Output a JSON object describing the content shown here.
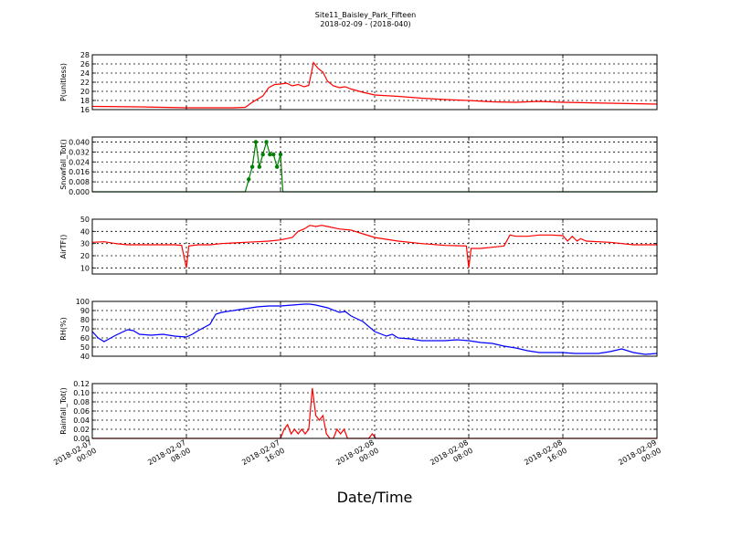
{
  "title": "Site11_Baisley_Park_Fifteen",
  "subtitle": "2018-02-09 - (2018-040)",
  "xlabel": "Date/Time",
  "x_ticks": [
    [
      "2018-02-07",
      "00:00"
    ],
    [
      "2018-02-07",
      "08:00"
    ],
    [
      "2018-02-07",
      "16:00"
    ],
    [
      "2018-02-08",
      "00:00"
    ],
    [
      "2018-02-08",
      "08:00"
    ],
    [
      "2018-02-08",
      "16:00"
    ],
    [
      "2018-02-09",
      "00:00"
    ]
  ],
  "chart_data": [
    {
      "type": "line",
      "ylabel": "P(unitless)",
      "ylim": [
        16,
        28
      ],
      "yticks": [
        "16",
        "18",
        "20",
        "22",
        "24",
        "26",
        "28"
      ],
      "grid": true,
      "color": "#ff0000",
      "x_hours": [
        0,
        4,
        8,
        12,
        13,
        13.6,
        14.5,
        15,
        15.5,
        16,
        16.5,
        17,
        17.5,
        18,
        18.4,
        18.8,
        19.2,
        19.6,
        20,
        20.5,
        21,
        21.5,
        22,
        23,
        24,
        26,
        28,
        30,
        32,
        34,
        36,
        38,
        40,
        42,
        44,
        46,
        48
      ],
      "values": [
        16.7,
        16.6,
        16.4,
        16.4,
        16.5,
        17.6,
        19.0,
        20.8,
        21.5,
        21.6,
        21.8,
        21.2,
        21.5,
        21.0,
        21.3,
        26.3,
        25.0,
        24.2,
        22.2,
        21.2,
        20.8,
        21.0,
        20.5,
        19.8,
        19.2,
        18.9,
        18.5,
        18.2,
        18.0,
        17.7,
        17.6,
        17.8,
        17.6,
        17.5,
        17.4,
        17.3,
        17.2
      ]
    },
    {
      "type": "line",
      "ylabel": "Snowfall_Tot()",
      "ylim": [
        0,
        0.044
      ],
      "yticks": [
        "0.000",
        "0.008",
        "0.016",
        "0.024",
        "0.032",
        "0.040"
      ],
      "grid": true,
      "color": "#008000",
      "markers": true,
      "x_hours": [
        0,
        13.0,
        13.3,
        13.6,
        13.9,
        14.2,
        14.5,
        14.8,
        15.1,
        15.4,
        15.7,
        16.0,
        16.2,
        48
      ],
      "values": [
        0,
        0,
        0.01,
        0.02,
        0.04,
        0.02,
        0.03,
        0.04,
        0.03,
        0.03,
        0.02,
        0.03,
        0,
        0
      ]
    },
    {
      "type": "line",
      "ylabel": "AirTF()",
      "ylim": [
        5,
        50
      ],
      "yticks": [
        "10",
        "20",
        "30",
        "40",
        "50"
      ],
      "grid": true,
      "color": "#ff0000",
      "x_hours": [
        0,
        1,
        2,
        3,
        5,
        7,
        7.6,
        7.8,
        8.0,
        8.2,
        9,
        10,
        11,
        12,
        13,
        14,
        15,
        16,
        17,
        17.5,
        18,
        18.5,
        19,
        19.5,
        20,
        21,
        22,
        23,
        24,
        26,
        28,
        30,
        31.8,
        32,
        32.2,
        33,
        34,
        35,
        35.5,
        36,
        37,
        38,
        39,
        40,
        40.4,
        40.8,
        41.2,
        41.5,
        42,
        44,
        46,
        48
      ],
      "values": [
        31,
        31.5,
        30,
        29,
        29,
        29,
        28.5,
        19,
        10,
        28,
        29,
        29,
        30,
        30.5,
        31,
        31.5,
        32,
        33,
        35,
        40,
        42,
        45,
        44,
        45,
        44,
        42,
        41,
        38,
        35,
        32,
        30,
        28.5,
        28,
        10,
        26,
        26,
        27,
        28,
        37,
        36,
        36,
        37,
        37,
        36.5,
        32,
        36,
        32,
        34,
        32,
        31,
        29,
        29
      ]
    },
    {
      "type": "line",
      "ylabel": "RH(%)",
      "ylim": [
        40,
        100
      ],
      "yticks": [
        "40",
        "50",
        "60",
        "70",
        "80",
        "90",
        "100"
      ],
      "grid": true,
      "color": "#0000ff",
      "x_hours": [
        0,
        0.5,
        1,
        2,
        3,
        3.5,
        4,
        5,
        6,
        7,
        8,
        8.5,
        9,
        10,
        10.5,
        11,
        12,
        13,
        14,
        15,
        16,
        17,
        18,
        18.5,
        19,
        20,
        21,
        21.5,
        22,
        22.5,
        23,
        24,
        25,
        25.5,
        26,
        27,
        28,
        29,
        30,
        31,
        32,
        33,
        34,
        35,
        36,
        37,
        38,
        39,
        40,
        41,
        42,
        43,
        44,
        45,
        46,
        47,
        48
      ],
      "values": [
        67,
        60,
        56,
        63,
        69,
        68,
        64,
        63,
        64,
        62,
        61,
        64,
        68,
        75,
        86,
        88,
        90,
        92,
        94,
        95,
        95,
        96,
        97,
        97,
        96,
        93,
        88,
        89,
        84,
        81,
        78,
        67,
        62,
        64,
        60,
        59,
        57,
        57,
        57,
        58,
        57,
        55,
        54,
        51,
        49,
        46,
        44,
        44,
        44,
        43,
        43,
        43,
        45,
        48,
        44,
        42,
        43
      ]
    },
    {
      "type": "line",
      "ylabel": "Rainfall_Tot()",
      "ylim": [
        0,
        0.12
      ],
      "yticks": [
        "0.00",
        "0.02",
        "0.04",
        "0.06",
        "0.08",
        "0.10",
        "0.12"
      ],
      "grid": true,
      "color": "#ff0000",
      "x_hours": [
        0,
        16.0,
        16.3,
        16.6,
        16.9,
        17.2,
        17.5,
        17.8,
        18.1,
        18.4,
        18.7,
        19.0,
        19.3,
        19.6,
        19.9,
        20.2,
        20.5,
        20.8,
        21.1,
        21.4,
        21.7,
        22.0,
        22.3,
        23.5,
        23.8,
        24.1,
        24.4,
        48
      ],
      "values": [
        0,
        0,
        0.02,
        0.03,
        0.01,
        0.02,
        0.01,
        0.02,
        0.01,
        0.02,
        0.11,
        0.05,
        0.04,
        0.05,
        0.01,
        0.0,
        0.0,
        0.02,
        0.01,
        0.02,
        0.0,
        0.0,
        0.0,
        0.0,
        0.01,
        0.0,
        0.0,
        0.0
      ]
    }
  ]
}
